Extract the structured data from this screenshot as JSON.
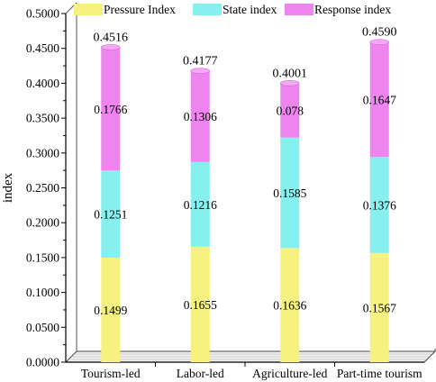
{
  "chart_data": {
    "type": "bar",
    "stacked": true,
    "categories": [
      "Tourism-led",
      "Labor-led",
      "Agriculture-led",
      "Part-time tourism"
    ],
    "series": [
      {
        "name": "Pressure Index",
        "values": [
          0.1499,
          0.1655,
          0.1636,
          0.1567
        ],
        "labels": [
          "0.1499",
          "0.1655",
          "0.1636",
          "0.1567"
        ],
        "color": "#f7f27f"
      },
      {
        "name": "State index",
        "values": [
          0.1251,
          0.1216,
          0.1585,
          0.1376
        ],
        "labels": [
          "0.1251",
          "0.1216",
          "0.1585",
          "0.1376"
        ],
        "color": "#86f0ef"
      },
      {
        "name": "Response index",
        "values": [
          0.1766,
          0.1306,
          0.078,
          0.1647
        ],
        "labels": [
          "0.1766",
          "0.1306",
          "0.078",
          "0.1647"
        ],
        "color": "#ee84ee"
      }
    ],
    "totals": [
      0.4516,
      0.4177,
      0.4001,
      0.459
    ],
    "total_labels": [
      "0.4516",
      "0.4177",
      "0.4001",
      "0.4590"
    ],
    "xlabel": "",
    "ylabel": "index",
    "ylim": [
      0,
      0.5
    ],
    "yticks": [
      "0.0000",
      "0.0500",
      "0.1000",
      "0.1500",
      "0.2000",
      "0.2500",
      "0.3000",
      "0.3500",
      "0.4000",
      "0.4500",
      "0.5000"
    ],
    "grid": false,
    "legend_position": "top",
    "style": "3d-box"
  }
}
